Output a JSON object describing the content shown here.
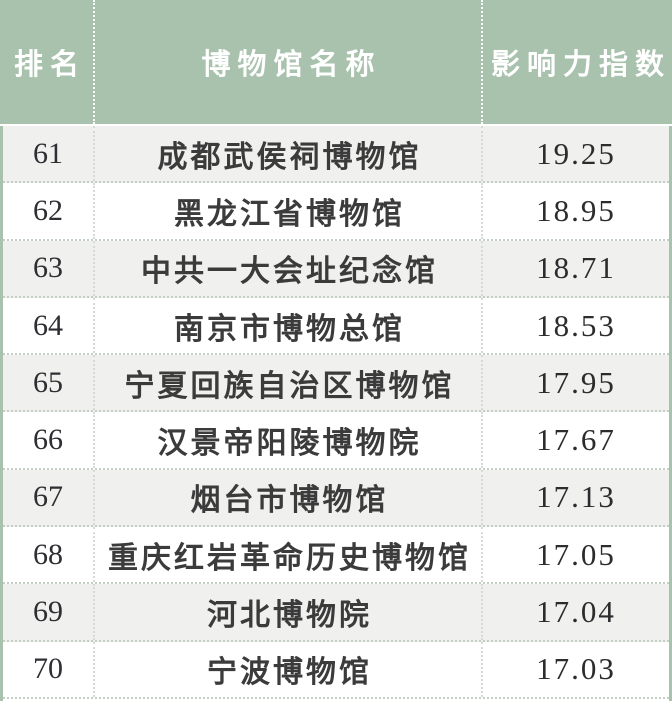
{
  "chart_data": {
    "type": "table",
    "title": "",
    "columns": [
      {
        "key": "rank",
        "label": "排名"
      },
      {
        "key": "name",
        "label": "博物馆名称"
      },
      {
        "key": "index",
        "label": "影响力指数"
      }
    ],
    "rows": [
      [
        "61",
        "成都武侯祠博物馆",
        "19.25"
      ],
      [
        "62",
        "黑龙江省博物馆",
        "18.95"
      ],
      [
        "63",
        "中共一大会址纪念馆",
        "18.71"
      ],
      [
        "64",
        "南京市博物总馆",
        "18.53"
      ],
      [
        "65",
        "宁夏回族自治区博物馆",
        "17.95"
      ],
      [
        "66",
        "汉景帝阳陵博物院",
        "17.67"
      ],
      [
        "67",
        "烟台市博物馆",
        "17.13"
      ],
      [
        "68",
        "重庆红岩革命历史博物馆",
        "17.05"
      ],
      [
        "69",
        "河北博物院",
        "17.04"
      ],
      [
        "70",
        "宁波博物馆",
        "17.03"
      ]
    ],
    "layout": {
      "rank_range": "61-70",
      "striped": "odd rows shaded",
      "header_position": "top"
    }
  },
  "colors": {
    "header_bg": "#a8c2ad",
    "header_text": "#ffffff",
    "row_alt_bg": "#f0f0ef",
    "row_bg": "#ffffff",
    "body_text": "#3b3b3b",
    "number_text": "#2c2c2e",
    "divider_dots": "#c3cec4",
    "side_border": "#a8c2ad"
  }
}
